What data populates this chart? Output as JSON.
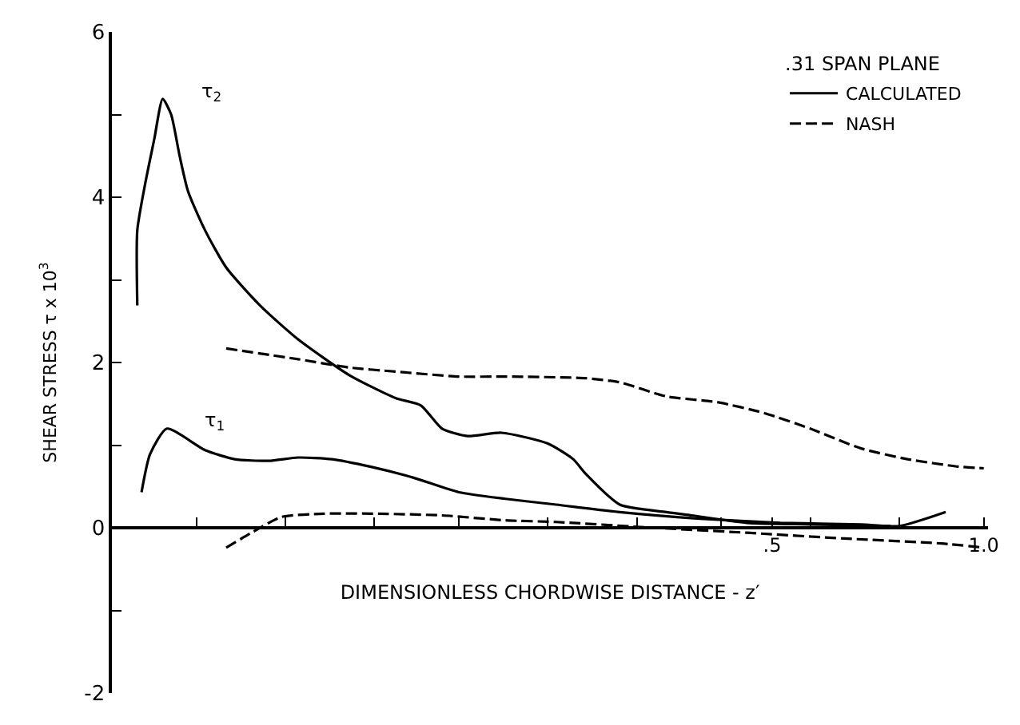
{
  "chart_data": {
    "type": "line",
    "xlabel": "DIMENSIONLESS CHORDWISE DISTANCE - z′",
    "ylabel": "SHEAR STRESS τ x 10$^{3}$",
    "legend_title": ".31 SPAN PLANE",
    "legend": "top right",
    "xlim": [
      -1.06,
      1.01
    ],
    "xticks": [
      {
        "value": -0.86,
        "label": null
      },
      {
        "value": -0.65,
        "label": null
      },
      {
        "value": -0.44,
        "label": null
      },
      {
        "value": -0.24,
        "label": null
      },
      {
        "value": -0.03,
        "label": null
      },
      {
        "value": 0.18,
        "label": null
      },
      {
        "value": 0.38,
        "label": null
      },
      {
        "value": 0.5,
        "label": ".5"
      },
      {
        "value": 0.59,
        "label": null
      },
      {
        "value": 0.8,
        "label": null
      },
      {
        "value": 1.0,
        "label": "1.0"
      }
    ],
    "ylim": [
      -2,
      6
    ],
    "yticks": [
      -2,
      {
        "value": -1,
        "label": null
      },
      0,
      {
        "value": 1,
        "label": null
      },
      2,
      {
        "value": 3,
        "label": null
      },
      4,
      {
        "value": 5,
        "label": null
      },
      6
    ],
    "annotations": [
      "τ$_{2}$",
      "τ$_{1}$"
    ],
    "series": [
      {
        "name": "CALCULATED",
        "color": "#000000",
        "line_style": "solid",
        "x": [
          -1.0,
          -1.0,
          -0.98,
          -0.96,
          -0.94,
          -0.92,
          -0.9,
          -0.88,
          -0.84,
          -0.79,
          -0.71,
          -0.62,
          -0.5,
          -0.39,
          -0.33,
          -0.28,
          -0.22,
          -0.14,
          -0.03,
          0.03,
          0.06,
          0.14,
          0.25,
          0.31,
          0.44,
          0.59,
          0.78
        ],
        "values": [
          2.69,
          3.6,
          4.2,
          4.7,
          5.19,
          5.0,
          4.5,
          4.07,
          3.6,
          3.15,
          2.69,
          2.28,
          1.85,
          1.57,
          1.48,
          1.2,
          1.11,
          1.15,
          1.02,
          0.83,
          0.65,
          0.28,
          0.19,
          0.15,
          0.06,
          0.04,
          0.02
        ]
      },
      {
        "color": "#000000",
        "line_style": "solid",
        "x": [
          -0.99,
          -0.97,
          -0.93,
          -0.84,
          -0.77,
          -0.69,
          -0.62,
          -0.54,
          -0.45,
          -0.35,
          -0.24,
          -0.13,
          -0.01,
          0.14,
          0.33,
          0.52,
          0.71,
          0.8,
          0.91
        ],
        "values": [
          0.43,
          0.89,
          1.2,
          0.94,
          0.83,
          0.81,
          0.85,
          0.83,
          0.74,
          0.61,
          0.43,
          0.35,
          0.28,
          0.19,
          0.11,
          0.06,
          0.04,
          0.02,
          0.19
        ]
      },
      {
        "name": "NASH",
        "color": "#000000",
        "line_style": "dashed",
        "x": [
          -0.79,
          -0.62,
          -0.5,
          -0.39,
          -0.24,
          -0.13,
          0.06,
          0.14,
          0.25,
          0.37,
          0.48,
          0.59,
          0.71,
          0.82,
          0.94,
          1.0
        ],
        "values": [
          2.17,
          2.04,
          1.94,
          1.89,
          1.83,
          1.83,
          1.81,
          1.76,
          1.59,
          1.52,
          1.39,
          1.2,
          0.96,
          0.83,
          0.74,
          0.72
        ]
      },
      {
        "color": "#000000",
        "line_style": "dashed",
        "x": [
          -0.79,
          -0.73,
          -0.66,
          -0.56,
          -0.43,
          -0.28,
          -0.13,
          -0.01,
          0.22,
          0.44,
          0.67,
          0.9,
          1.0
        ],
        "values": [
          -0.24,
          -0.06,
          0.13,
          0.17,
          0.17,
          0.15,
          0.09,
          0.07,
          0.0,
          -0.06,
          -0.13,
          -0.19,
          -0.24
        ]
      }
    ]
  }
}
